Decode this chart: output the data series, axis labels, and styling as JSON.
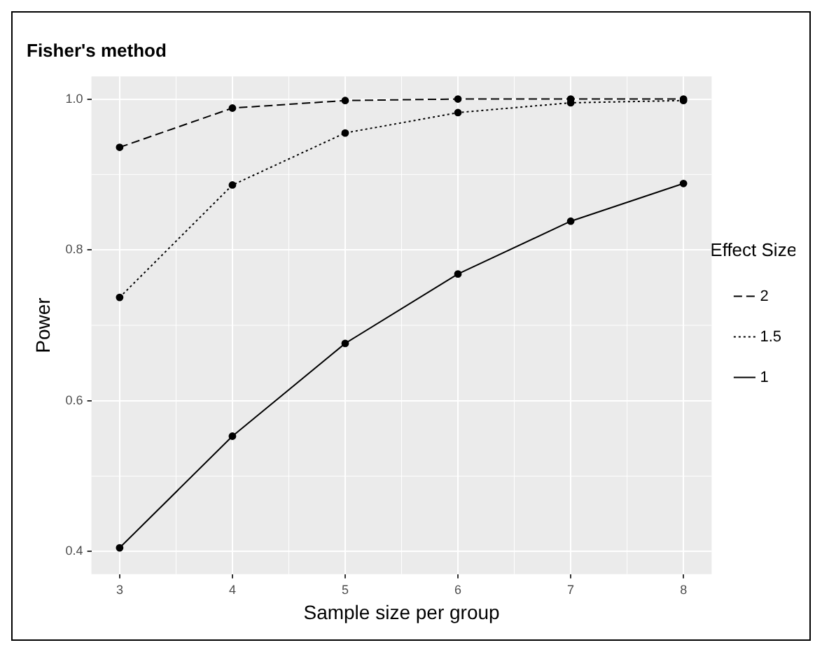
{
  "chart_data": {
    "type": "line",
    "title": "Fisher's method",
    "xlabel": "Sample size per group",
    "ylabel": "Power",
    "legend_title": "Effect Size",
    "x": [
      3,
      4,
      5,
      6,
      7,
      8
    ],
    "series": [
      {
        "name": "2",
        "color": "#000000",
        "line_style": "dashed",
        "values": [
          0.936,
          0.988,
          0.998,
          1.0,
          1.0,
          1.0
        ]
      },
      {
        "name": "1.5",
        "color": "#000000",
        "line_style": "dotted",
        "values": [
          0.737,
          0.886,
          0.955,
          0.982,
          0.995,
          0.998
        ]
      },
      {
        "name": "1",
        "color": "#000000",
        "line_style": "solid",
        "values": [
          0.405,
          0.553,
          0.676,
          0.768,
          0.838,
          0.888
        ]
      }
    ],
    "xlim": [
      2.75,
      8.25
    ],
    "xticks": [
      3,
      4,
      5,
      6,
      7,
      8
    ],
    "ylim": [
      0.37,
      1.03
    ],
    "yticks": [
      0.4,
      0.6,
      0.8,
      {
        "value": 1,
        "label": "1.0"
      }
    ],
    "grid": true,
    "legend": "right",
    "marker": "circle"
  }
}
